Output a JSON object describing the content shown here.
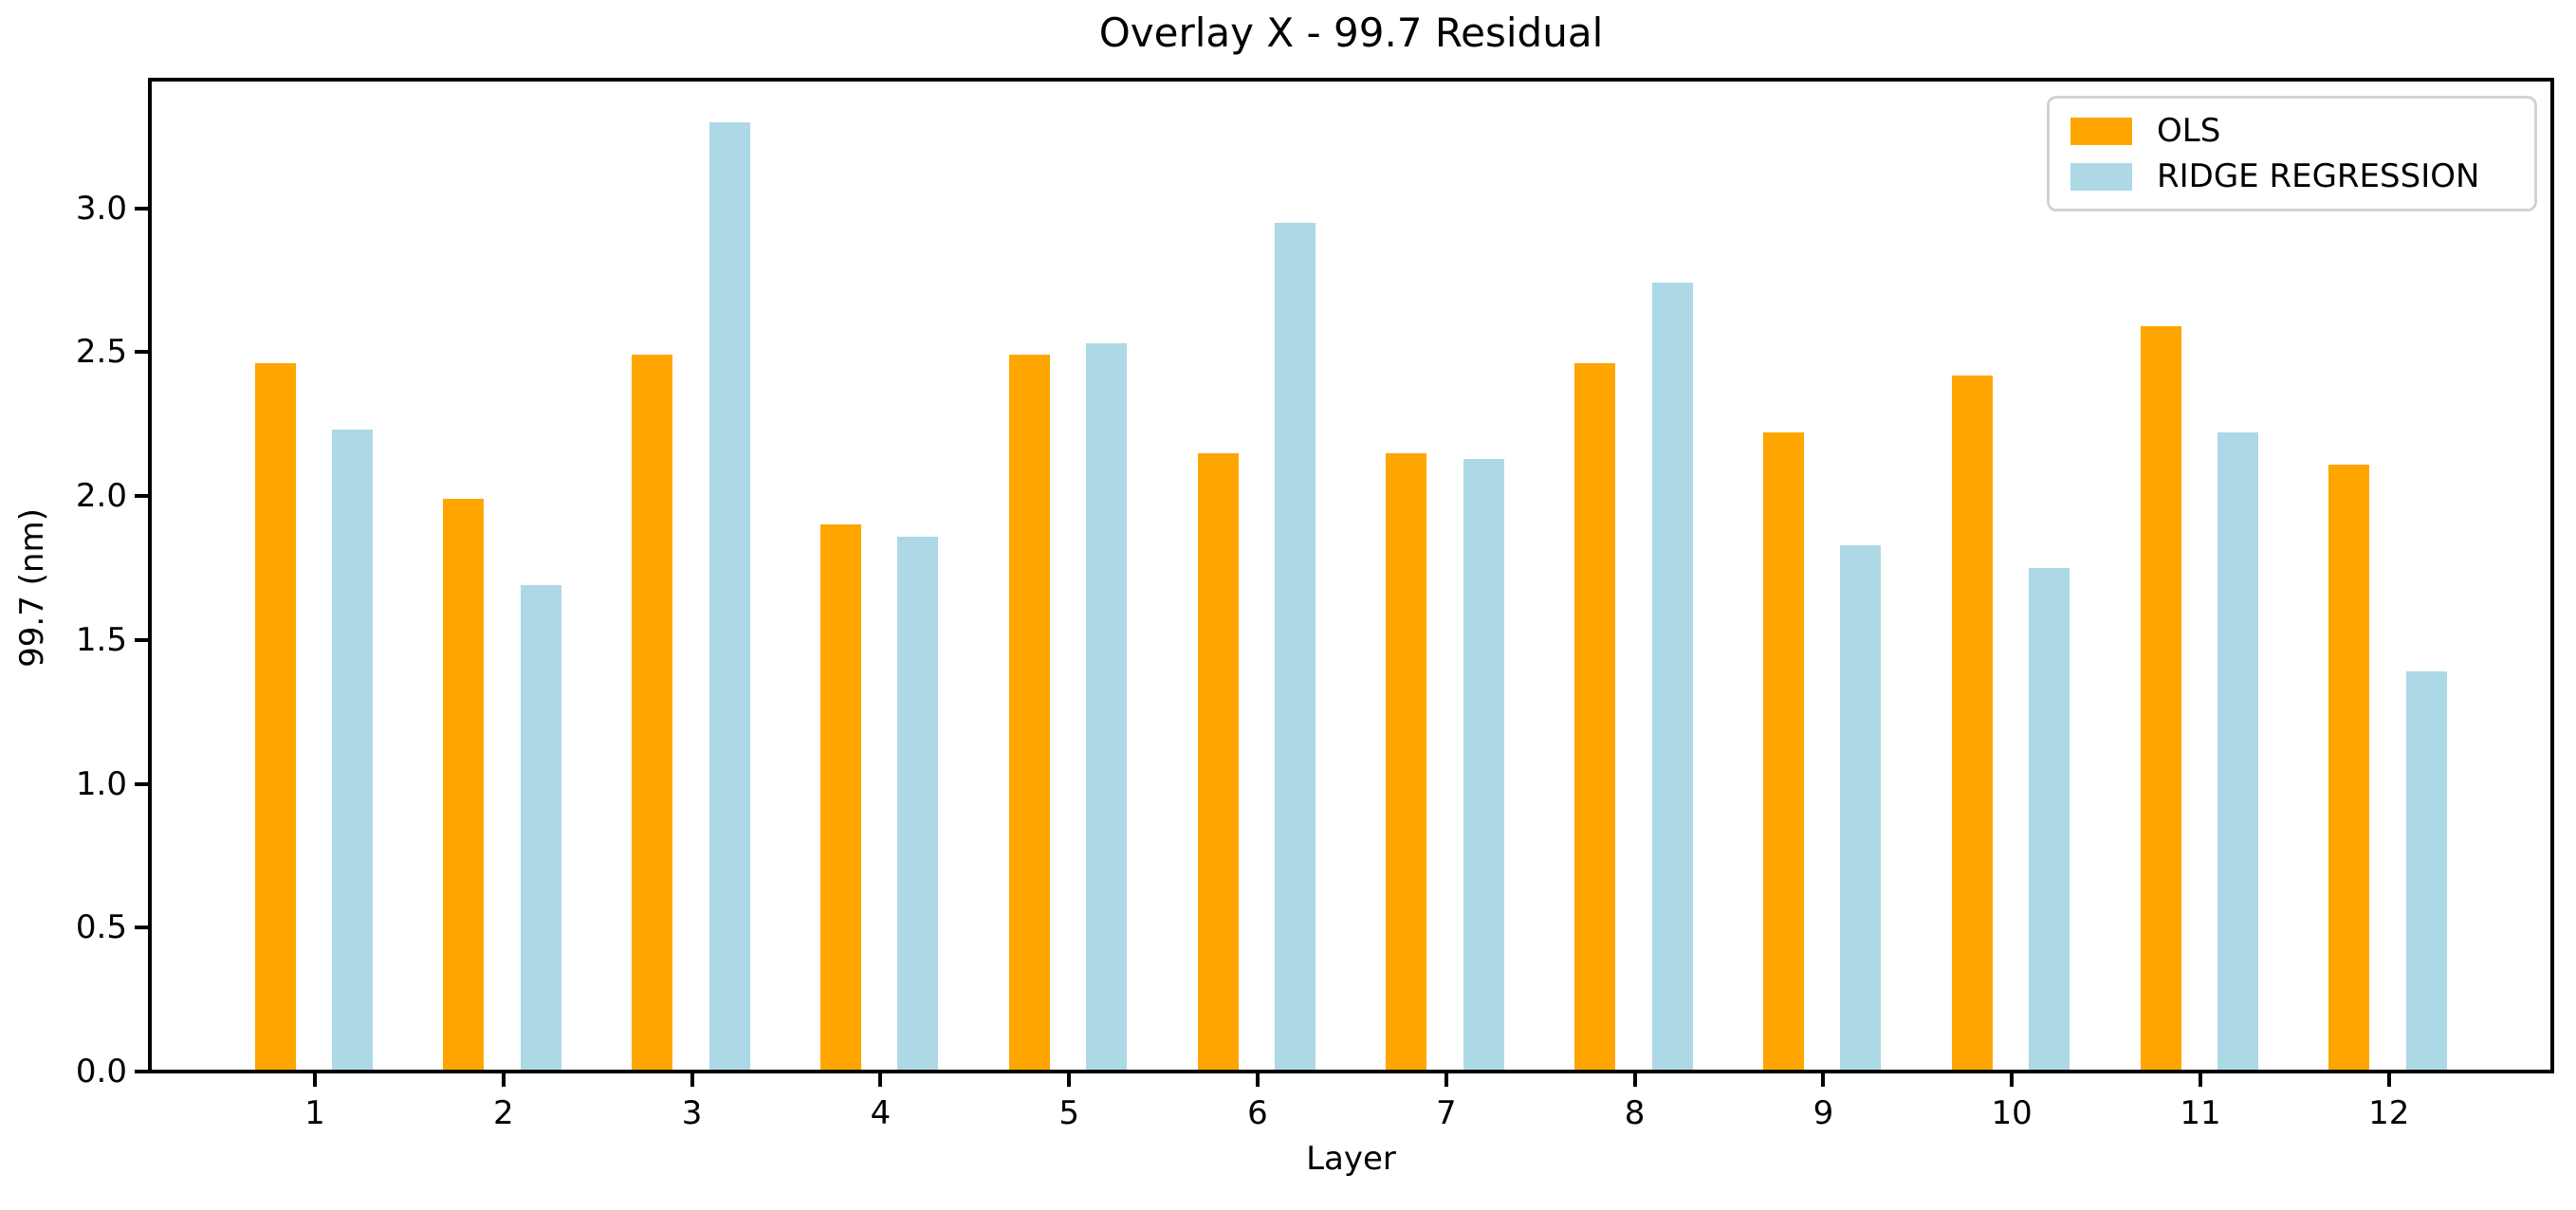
{
  "chart_data": {
    "type": "bar",
    "title": "Overlay X - 99.7 Residual",
    "xlabel": "Layer",
    "ylabel": "99.7 (nm)",
    "categories": [
      1,
      2,
      3,
      4,
      5,
      6,
      7,
      8,
      9,
      10,
      11,
      12
    ],
    "series": [
      {
        "name": "OLS",
        "color": "#FFA500",
        "values": [
          2.46,
          1.99,
          2.49,
          1.9,
          2.49,
          2.15,
          2.15,
          2.46,
          2.22,
          2.42,
          2.59,
          2.11
        ]
      },
      {
        "name": "RIDGE REGRESSION",
        "color": "#ADD8E6",
        "values": [
          2.23,
          1.69,
          3.3,
          1.86,
          2.53,
          2.95,
          2.13,
          2.74,
          1.83,
          1.75,
          2.22,
          1.39
        ]
      }
    ],
    "ylim": [
      0,
      3.46
    ],
    "yticks": [
      0.0,
      0.5,
      1.0,
      1.5,
      2.0,
      2.5,
      3.0
    ],
    "grid": false,
    "legend_position": "upper right",
    "legend": [
      {
        "label": "OLS",
        "color": "#FFA500"
      },
      {
        "label": "RIDGE REGRESSION",
        "color": "#ADD8E6"
      }
    ],
    "colors": {
      "spine": "#000000",
      "text": "#000000",
      "legend_border": "#D3D3D3",
      "background": "#FFFFFF"
    }
  }
}
